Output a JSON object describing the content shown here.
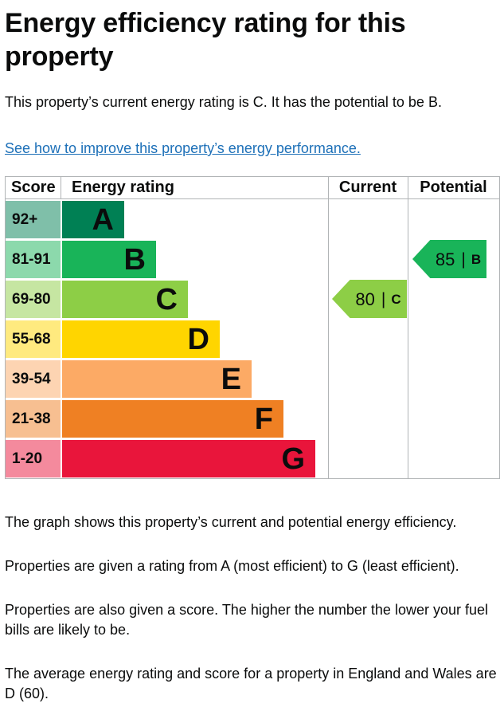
{
  "page": {
    "title": "Energy efficiency rating for this property",
    "intro": "This property’s current energy rating is C. It has the potential to be B.",
    "link_text": "See how to improve this property’s energy performance.",
    "footer_paragraphs": [
      "The graph shows this property’s current and potential energy efficiency.",
      "Properties are given a rating from A (most efficient) to G (least efficient).",
      "Properties are also given a score. The higher the number the lower your fuel bills are likely to be.",
      "The average energy rating and score for a property in England and Wales are D (60)."
    ]
  },
  "colors": {
    "text": "#0b0c0c",
    "link": "#1d70b8",
    "table_border": "#b1b4b6"
  },
  "chart_data": {
    "type": "bar",
    "title": "Energy efficiency rating for this property",
    "columns": [
      "Score",
      "Energy rating",
      "Current",
      "Potential"
    ],
    "bands": [
      {
        "letter": "A",
        "range": "92+",
        "color": "#008054",
        "tint": "#7fbfa9"
      },
      {
        "letter": "B",
        "range": "81-91",
        "color": "#19b459",
        "tint": "#8cd9ac"
      },
      {
        "letter": "C",
        "range": "69-80",
        "color": "#8dce46",
        "tint": "#c6e6a2"
      },
      {
        "letter": "D",
        "range": "55-68",
        "color": "#ffd500",
        "tint": "#ffea7f"
      },
      {
        "letter": "E",
        "range": "39-54",
        "color": "#fcaa65",
        "tint": "#fdd4b2"
      },
      {
        "letter": "F",
        "range": "21-38",
        "color": "#ef8023",
        "tint": "#f7bf91"
      },
      {
        "letter": "G",
        "range": "1-20",
        "color": "#e9153b",
        "tint": "#f48a9d"
      }
    ],
    "current": {
      "score": 80,
      "separator": "|",
      "band": "C"
    },
    "potential": {
      "score": 85,
      "separator": "|",
      "band": "B"
    }
  }
}
